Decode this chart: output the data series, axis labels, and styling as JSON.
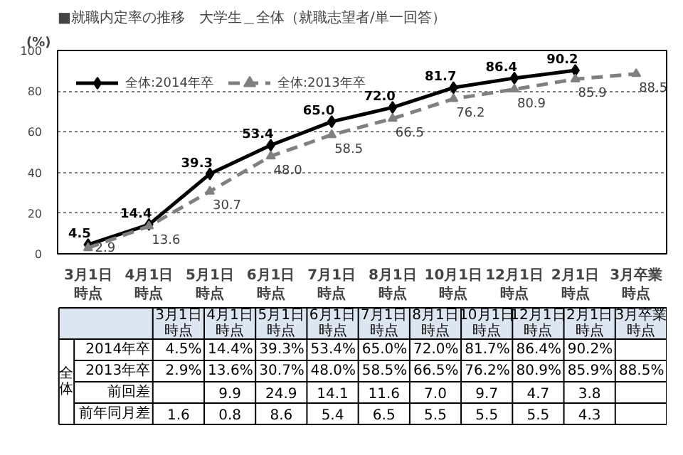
{
  "chart_data": {
    "type": "line",
    "title": "■就職内定率の推移　大学生＿全体（就職志望者/単一回答）",
    "ylabel": "(%)",
    "categories": [
      "3月1日時点",
      "4月1日時点",
      "5月1日時点",
      "6月1日時点",
      "7月1日時点",
      "8月1日時点",
      "10月1日時点",
      "12月1日時点",
      "2月1日時点",
      "3月卒業時点"
    ],
    "series": [
      {
        "name": "全体:2014年卒",
        "color": "#000000",
        "marker": "diamond",
        "line_style": "solid",
        "values": [
          4.5,
          14.4,
          39.3,
          53.4,
          65.0,
          72.0,
          81.7,
          86.4,
          90.2,
          null
        ],
        "value_labels": [
          "4.5",
          "14.4",
          "39.3",
          "53.4",
          "65.0",
          "72.0",
          "81.7",
          "86.4",
          "90.2",
          null
        ]
      },
      {
        "name": "全体:2013年卒",
        "color": "#808080",
        "marker": "triangle",
        "line_style": "dashed",
        "values": [
          2.9,
          13.6,
          30.7,
          48.0,
          58.5,
          66.5,
          76.2,
          80.9,
          85.9,
          88.5
        ],
        "value_labels": [
          "2.9",
          "13.6",
          "30.7",
          "48.0",
          "58.5",
          "66.5",
          "76.2",
          "80.9",
          "85.9",
          "88.5"
        ]
      }
    ],
    "ylim": [
      0,
      100
    ],
    "yticks": [
      0,
      20,
      40,
      60,
      80,
      100
    ],
    "grid": "y",
    "legend": "top left",
    "annotations": [
      "全体",
      "2014年卒",
      "2013年卒",
      "前回差",
      "前年同月差",
      "4.5%",
      "14.4%",
      "39.3%",
      "53.4%",
      "65.0%",
      "72.0%",
      "81.7%",
      "86.4%",
      "90.2%",
      "2.9%",
      "13.6%",
      "30.7%",
      "48.0%",
      "58.5%",
      "66.5%",
      "76.2%",
      "80.9%",
      "85.9%",
      "88.5%",
      "9.9",
      "24.9",
      "14.1",
      "11.6",
      "7.0",
      "9.7",
      "4.7",
      "3.8",
      "1.6",
      "0.8",
      "8.6",
      "5.4",
      "6.5",
      "5.5",
      "5.5",
      "5.5",
      "4.3"
    ]
  }
}
